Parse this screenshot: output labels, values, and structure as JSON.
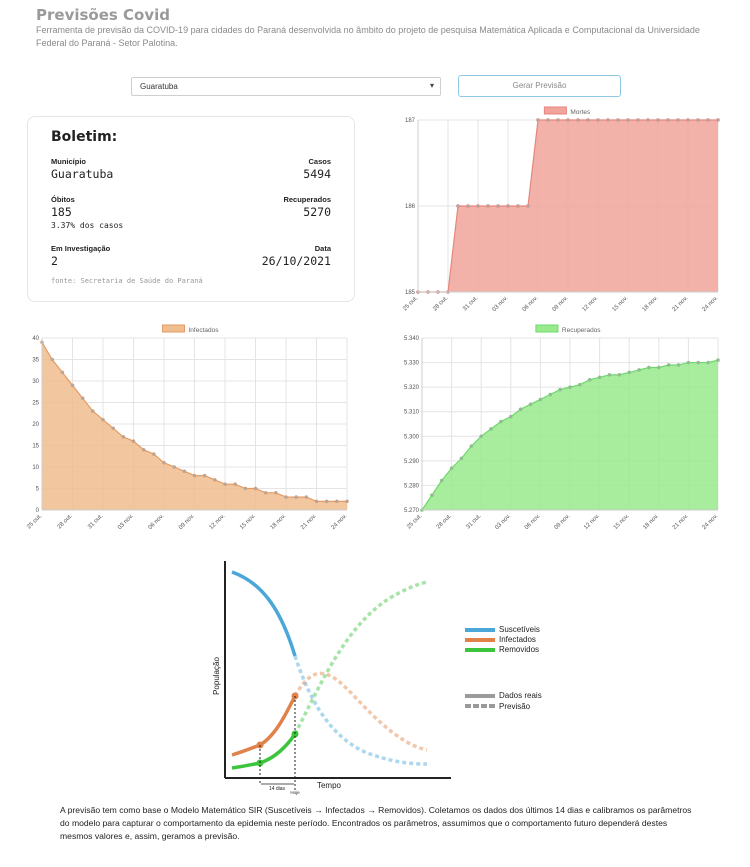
{
  "header": {
    "title": "Previsões Covid",
    "description": "Ferramenta de previsão da COVID-19 para cidades do Paraná desenvolvida no âmbito do projeto de pesquisa Matemática Aplicada e Computacional da Universidade Federal do Paraná - Setor Palotina."
  },
  "controls": {
    "city_value": "Guaratuba",
    "generate_label": "Gerar Previsão"
  },
  "boletim": {
    "title": "Boletim:",
    "municipio_label": "Município",
    "municipio_value": "Guaratuba",
    "casos_label": "Casos",
    "casos_value": "5494",
    "obitos_label": "Óbitos",
    "obitos_value": "185",
    "obitos_pct": "3.37% dos casos",
    "recuperados_label": "Recuperados",
    "recuperados_value": "5270",
    "investigacao_label": "Em Investigação",
    "investigacao_value": "2",
    "data_label": "Data",
    "data_value": "26/10/2021",
    "source": "fonte: Secretaria de Saúde do Paraná"
  },
  "chart_data": [
    {
      "id": "mortes",
      "type": "area",
      "legend": "Mortes",
      "color": "#e8867c",
      "fill": "#f0a49b",
      "xticks": [
        "25 out.",
        "28 out.",
        "31 out.",
        "03 nov.",
        "06 nov.",
        "09 nov.",
        "12 nov.",
        "15 nov.",
        "18 nov.",
        "21 nov.",
        "24 nov."
      ],
      "ylim": [
        185,
        187
      ],
      "yticks": [
        "185",
        "186",
        "187"
      ],
      "values": [
        185,
        185,
        185,
        185,
        186,
        186,
        186,
        186,
        186,
        186,
        186,
        186,
        187,
        187,
        187,
        187,
        187,
        187,
        187,
        187,
        187,
        187,
        187,
        187,
        187,
        187,
        187,
        187,
        187,
        187,
        187
      ]
    },
    {
      "id": "infectados",
      "type": "area",
      "legend": "Infectados",
      "color": "#e59a63",
      "fill": "#f0bd8f",
      "xticks": [
        "25 out.",
        "28 out.",
        "31 out.",
        "03 nov.",
        "06 nov.",
        "09 nov.",
        "12 nov.",
        "15 nov.",
        "18 nov.",
        "21 nov.",
        "24 nov."
      ],
      "ylim": [
        0,
        40
      ],
      "yticks": [
        "0",
        "5",
        "10",
        "15",
        "20",
        "25",
        "30",
        "35",
        "40"
      ],
      "values": [
        39,
        35,
        32,
        29,
        26,
        23,
        21,
        19,
        17,
        16,
        14,
        13,
        11,
        10,
        9,
        8,
        8,
        7,
        6,
        6,
        5,
        5,
        4,
        4,
        3,
        3,
        3,
        2,
        2,
        2,
        2
      ]
    },
    {
      "id": "recuperados",
      "type": "area",
      "legend": "Recuperados",
      "color": "#6cd96c",
      "fill": "#98ea8c",
      "xticks": [
        "25 out.",
        "28 out.",
        "31 out.",
        "03 nov.",
        "06 nov.",
        "09 nov.",
        "12 nov.",
        "15 nov.",
        "18 nov.",
        "21 nov.",
        "24 nov."
      ],
      "ylim": [
        5270,
        5340
      ],
      "yticks": [
        "5.270",
        "5.280",
        "5.290",
        "5.300",
        "5.310",
        "5.320",
        "5.330",
        "5.340"
      ],
      "values": [
        5270,
        5276,
        5282,
        5287,
        5291,
        5296,
        5300,
        5303,
        5306,
        5308,
        5311,
        5313,
        5315,
        5317,
        5319,
        5320,
        5321,
        5323,
        5324,
        5325,
        5325,
        5326,
        5327,
        5328,
        5328,
        5329,
        5329,
        5330,
        5330,
        5330,
        5331
      ]
    }
  ],
  "sir": {
    "ylabel": "População",
    "xlabel": "Tempo",
    "days_label": "14 dias",
    "today_label": "Hoje",
    "legend": [
      {
        "label": "Suscetíveis",
        "color": "#4aa7d8"
      },
      {
        "label": "Infectados",
        "color": "#e0824a"
      },
      {
        "label": "Removidos",
        "color": "#3cc43c"
      }
    ],
    "line_legend": [
      {
        "label": "Dados reais"
      },
      {
        "label": "Previsão"
      }
    ]
  },
  "footer": {
    "text": "A previsão tem como base o Modelo Matemático SIR (Suscetíveis → Infectados → Removidos). Coletamos os dados dos últimos 14 dias e calibramos os parâmetros do modelo para capturar o comportamento da epidemia neste período. Encontrados os parâmetros, assumimos que o comportamento futuro dependerá destes mesmos valores e, assim, geramos a previsão."
  }
}
